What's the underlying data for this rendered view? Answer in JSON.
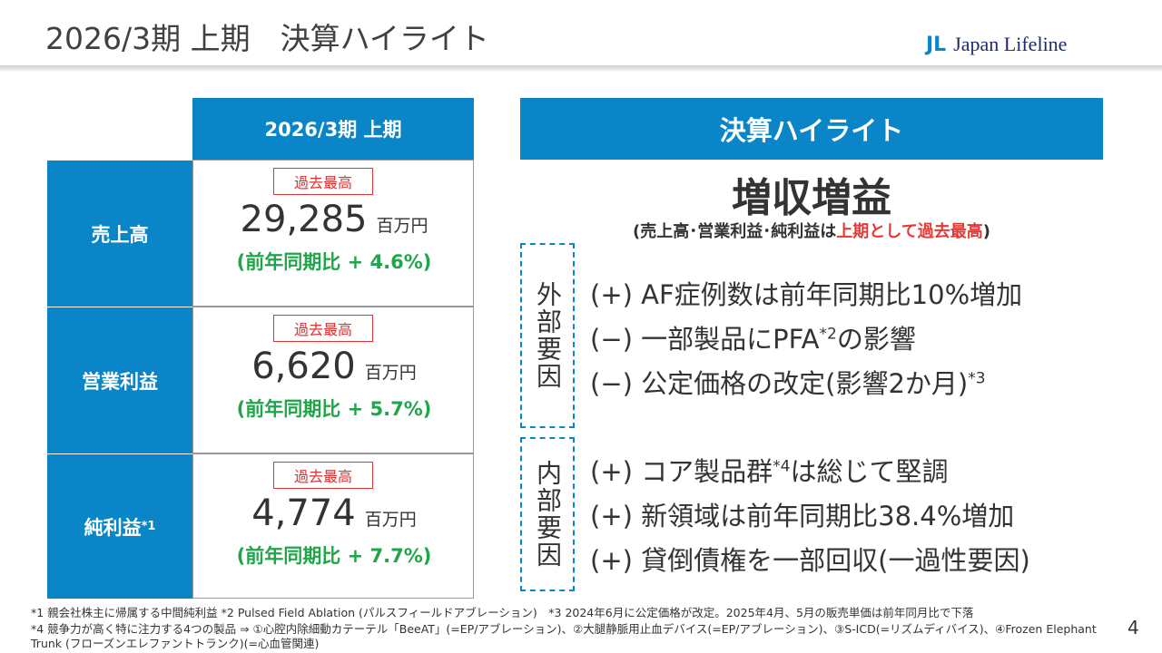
{
  "header": {
    "title": "2026/3期 上期　決算ハイライト",
    "logo_mark": "JL",
    "logo_text": "Japan Lifeline"
  },
  "table": {
    "header": "2026/3期 上期",
    "rows": [
      {
        "label": "売上高",
        "badge": "過去最高",
        "value": "29,285",
        "unit": "百万円",
        "change": "(前年同期比 + 4.6%)"
      },
      {
        "label": "営業利益",
        "badge": "過去最高",
        "value": "6,620",
        "unit": "百万円",
        "change": "(前年同期比 + 5.7%)"
      },
      {
        "label": "純利益",
        "label_sup": "*1",
        "badge": "過去最高",
        "value": "4,774",
        "unit": "百万円",
        "change": "(前年同期比 + 7.7%)"
      }
    ]
  },
  "highlights": {
    "header": "決算ハイライト",
    "headline": "増収増益",
    "note_before": "(売上高･営業利益･純利益は",
    "note_emph": "上期として過去最高",
    "note_after": ")",
    "groups": [
      {
        "label": "外部要因",
        "items": [
          {
            "text": "(+) AF症例数は前年同期比10%増加"
          },
          {
            "text": "(−) 一部製品にPFA",
            "sup": "*2",
            "after": "の影響"
          },
          {
            "text": "(−) 公定価格の改定(影響2か月)",
            "sup": "*3"
          }
        ]
      },
      {
        "label": "内部要因",
        "items": [
          {
            "text": "(+) コア製品群",
            "sup": "*4",
            "after": "は総じて堅調"
          },
          {
            "text": "(+) 新領域は前年同期比38.4%増加"
          },
          {
            "text": "(+) 貸倒債権を一部回収(一過性要因)"
          }
        ]
      }
    ]
  },
  "footnotes": [
    "*1 親会社株主に帰属する中間純利益 *2 Pulsed Field Ablation (パルスフィールドアブレーション)　*3 2024年6月に公定価格が改定。2025年4月、5月の販売単価は前年同月比で下落",
    "*4 競争力が高く特に注力する4つの製品 ⇒ ①心腔内除細動カテーテル「BeeAT」(=EP/アブレーション)、②大腿静脈用止血デバイス(=EP/アブレーション)、③S-ICD(=リズムディバイス)、④Frozen Elephant Trunk (フローズンエレファントトランク)(=心血管関連)"
  ],
  "page_number": "4"
}
